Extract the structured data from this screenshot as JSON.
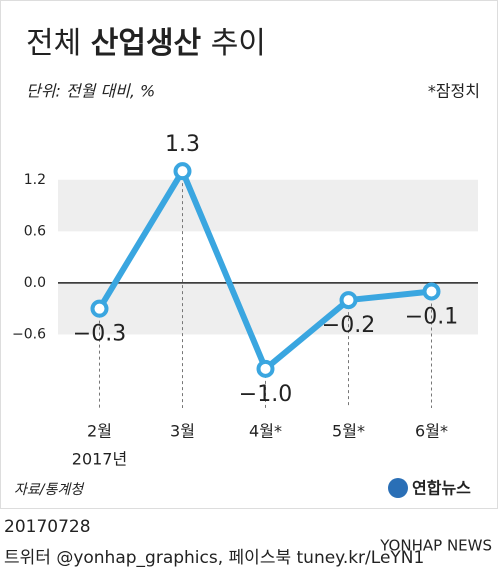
{
  "chart_data": {
    "type": "line",
    "title": [
      "전체",
      "산업생산",
      "추이"
    ],
    "subtitle": "단위: 전월 대비, %",
    "note": "*잠정치",
    "categories": [
      "2월",
      "3월",
      "4월*",
      "5월*",
      "6월*"
    ],
    "year_label": "2017년",
    "values": [
      -0.3,
      1.3,
      -1.0,
      -0.2,
      -0.1
    ],
    "value_labels": [
      "−0.3",
      "1.3",
      "−1.0",
      "−0.2",
      "−0.1"
    ],
    "color": "#3aa6e0",
    "band_color": "#eeeeee",
    "ylim": [
      -1.2,
      1.5
    ],
    "yticks": [
      1.2,
      0.6,
      {
        "value": 0,
        "label": "0.0"
      },
      {
        "value": -0.6,
        "label": "−0.6"
      }
    ],
    "source": "자료/통계청",
    "logo": "연합뉴스",
    "date": "20170728",
    "footer": "트위터 @yonhap_graphics, 페이스북 tuney.kr/LeYN1",
    "watermark": "YONHAP NEWS"
  }
}
